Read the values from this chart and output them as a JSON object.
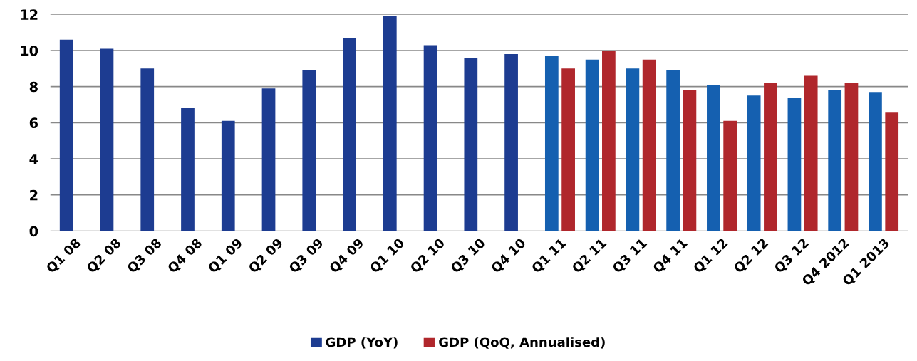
{
  "chart_data": {
    "type": "bar",
    "categories": [
      "Q1 08",
      "Q2 08",
      "Q3 08",
      "Q4 08",
      "Q1 09",
      "Q2 09",
      "Q3 09",
      "Q4 09",
      "Q1 10",
      "Q2 10",
      "Q3 10",
      "Q4 10",
      "Q1 11",
      "Q2 11",
      "Q3 11",
      "Q4 11",
      "Q1 12",
      "Q2 12",
      "Q3 12",
      "Q4 2012",
      "Q1 2013"
    ],
    "series": [
      {
        "name": "GDP (YoY)",
        "color": "#1d3c91",
        "colors": [
          "#1d3c91",
          "#1d3c91",
          "#1d3c91",
          "#1d3c91",
          "#1d3c91",
          "#1d3c91",
          "#1d3c91",
          "#1d3c91",
          "#1d3c91",
          "#1d3c91",
          "#1d3c91",
          "#1d3c91",
          "#1560b0",
          "#1560b0",
          "#1560b0",
          "#1560b0",
          "#1560b0",
          "#1560b0",
          "#1560b0",
          "#1560b0",
          "#1560b0"
        ],
        "values": [
          10.6,
          10.1,
          9.0,
          6.8,
          6.1,
          7.9,
          8.9,
          10.7,
          11.9,
          10.3,
          9.6,
          9.8,
          9.7,
          9.5,
          9.0,
          8.9,
          8.1,
          7.5,
          7.4,
          7.8,
          7.7
        ]
      },
      {
        "name": "GDP (QoQ, Annualised)",
        "color": "#b0272c",
        "values": [
          null,
          null,
          null,
          null,
          null,
          null,
          null,
          null,
          null,
          null,
          null,
          null,
          9.0,
          10.0,
          9.5,
          7.8,
          6.1,
          8.2,
          8.6,
          8.2,
          6.6
        ]
      }
    ],
    "ylim": [
      0,
      12
    ],
    "yticks": [
      0,
      2,
      4,
      6,
      8,
      10,
      12
    ],
    "grid": "y",
    "legend": "bottom"
  }
}
